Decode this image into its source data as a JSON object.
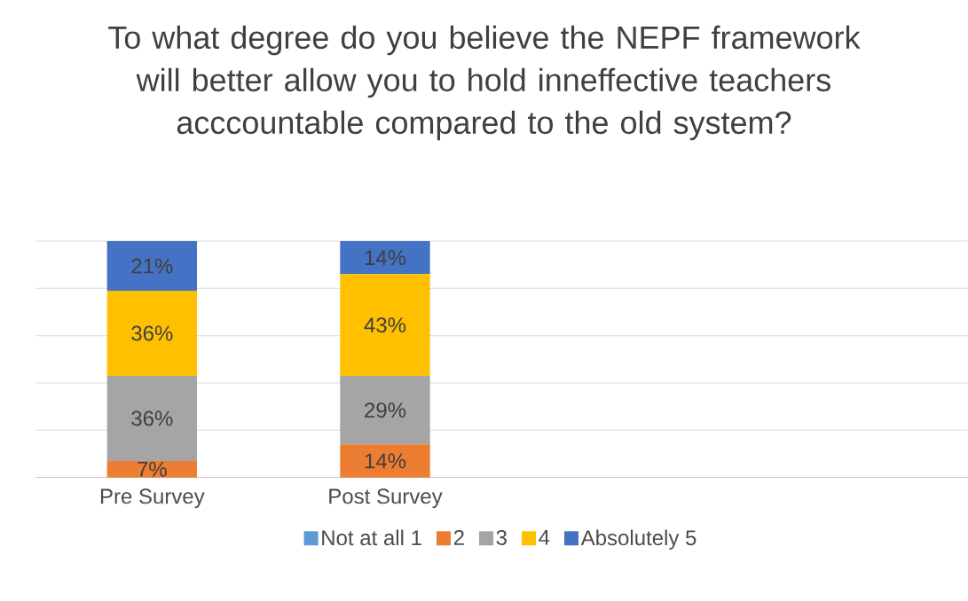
{
  "chart_data": {
    "type": "bar",
    "stacked": true,
    "title": "To what degree do you believe the NEPF framework will better allow you to hold inneffective teachers acccountable compared to the old system?",
    "categories": [
      "Pre Survey",
      "Post Survey",
      null,
      null
    ],
    "series": [
      {
        "name": "Not at all 1",
        "color": "#5b9bd5",
        "values": [
          null,
          null,
          null,
          null
        ]
      },
      {
        "name": "2",
        "color": "#ed7d31",
        "values": [
          7,
          14,
          null,
          null
        ],
        "value_labels": [
          "7%",
          "14%",
          null,
          null
        ]
      },
      {
        "name": "3",
        "color": "#a5a5a5",
        "values": [
          36,
          29,
          null,
          null
        ],
        "value_labels": [
          "36%",
          "29%",
          null,
          null
        ]
      },
      {
        "name": "4",
        "color": "#ffc000",
        "values": [
          36,
          43,
          null,
          null
        ],
        "value_labels": [
          "36%",
          "43%",
          null,
          null
        ]
      },
      {
        "name": "Absolutely 5",
        "color": "#4472c4",
        "values": [
          21,
          14,
          null,
          null
        ],
        "value_labels": [
          "21%",
          "14%",
          null,
          null
        ]
      }
    ],
    "ylim": [
      0,
      100
    ],
    "tick_labels": "x",
    "grid": "y",
    "legend": "bottom"
  }
}
